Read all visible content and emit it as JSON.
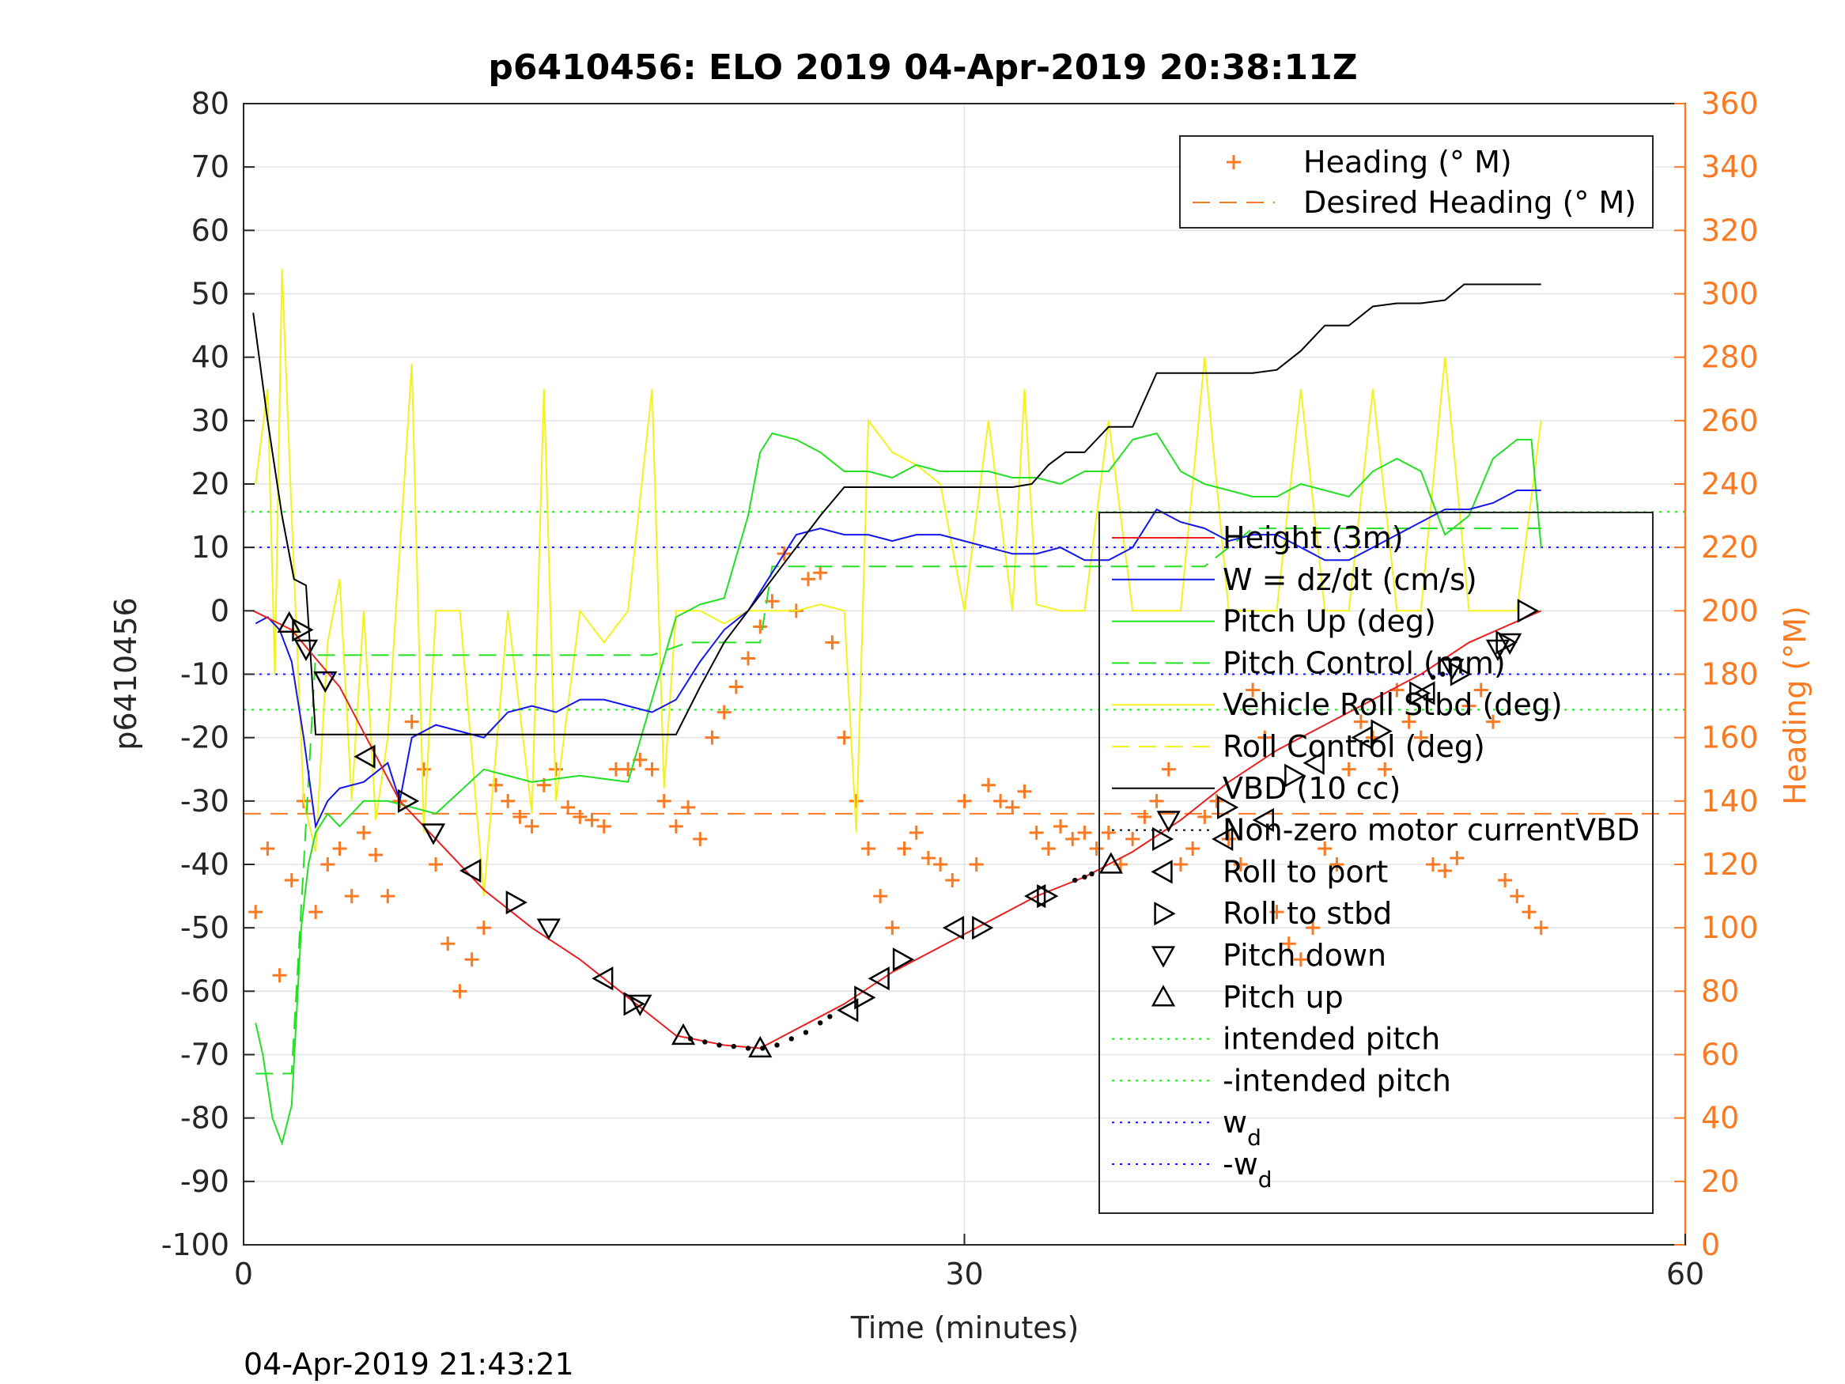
{
  "chart_data": {
    "type": "line",
    "title": "p6410456: ELO 2019 04-Apr-2019 20:38:11Z",
    "xlabel": "Time (minutes)",
    "ylabel": "p6410456",
    "y2label": "Heading (°M)",
    "footer": "04-Apr-2019 21:43:21",
    "xlim": [
      0,
      60
    ],
    "ylim": [
      -100,
      80
    ],
    "y2lim": [
      0,
      360
    ],
    "xticks": [
      0,
      30,
      60
    ],
    "yticks": [
      80,
      70,
      60,
      50,
      40,
      30,
      20,
      10,
      0,
      -10,
      -20,
      -30,
      -40,
      -50,
      -60,
      -70,
      -80,
      -90,
      -100
    ],
    "y2ticks": [
      360,
      340,
      320,
      300,
      280,
      260,
      240,
      220,
      200,
      180,
      160,
      140,
      120,
      100,
      80,
      60,
      40,
      20,
      0
    ],
    "grid": true,
    "colors": {
      "heading": "#f97a22",
      "height": "#e8201f",
      "w": "#1515ee",
      "pitch": "#23e023",
      "roll": "#f2f21d",
      "vbd": "#000000",
      "intended_pitch": "#23e023",
      "wd": "#1515ee",
      "right_axis": "#f97a22"
    },
    "legend_top": [
      {
        "label": "Heading (° M)",
        "style": "plus",
        "color": "#f97a22"
      },
      {
        "label": "Desired Heading (° M)",
        "style": "dash",
        "color": "#f97a22"
      }
    ],
    "legend_main": [
      {
        "label": "Height (3m)",
        "style": "solid",
        "color": "#e8201f"
      },
      {
        "label": "W = dz/dt (cm/s)",
        "style": "solid",
        "color": "#1515ee"
      },
      {
        "label": "Pitch Up (deg)",
        "style": "solid",
        "color": "#23e023"
      },
      {
        "label": "Pitch Control (mm)",
        "style": "dash",
        "color": "#23e023"
      },
      {
        "label": "Vehicle Roll Stbd (deg)",
        "style": "solid",
        "color": "#f2f21d"
      },
      {
        "label": "Roll Control (deg)",
        "style": "dash",
        "color": "#f2f21d"
      },
      {
        "label": "VBD (10 cc)",
        "style": "solid",
        "color": "#000000"
      },
      {
        "label": "Non-zero motor currentVBD",
        "style": "dot",
        "color": "#000000"
      },
      {
        "label": "Roll to port",
        "style": "tri-left",
        "color": "#000000"
      },
      {
        "label": "Roll to stbd",
        "style": "tri-right",
        "color": "#000000"
      },
      {
        "label": "Pitch down",
        "style": "tri-down",
        "color": "#000000"
      },
      {
        "label": "Pitch up",
        "style": "tri-up",
        "color": "#000000"
      },
      {
        "label": "intended pitch",
        "style": "dot",
        "color": "#23e023"
      },
      {
        "label": "-intended pitch",
        "style": "dot",
        "color": "#23e023"
      },
      {
        "label": "w",
        "sub": "d",
        "style": "dot",
        "color": "#1515ee"
      },
      {
        "label": "-w",
        "sub": "d",
        "style": "dot",
        "color": "#1515ee"
      }
    ],
    "series": [
      {
        "key": "height",
        "name": "Height (3m)",
        "axis": "left",
        "x": [
          0.4,
          2,
          4,
          6.5,
          8,
          10,
          12,
          14,
          16,
          18,
          20,
          21.5,
          23,
          25,
          27,
          29,
          31,
          33,
          35,
          37,
          39,
          41,
          43,
          45,
          47,
          49,
          51,
          54
        ],
        "y": [
          0,
          -3,
          -12,
          -30,
          -36,
          -44,
          -50,
          -55,
          -61,
          -67,
          -68.5,
          -69,
          -66,
          -62,
          -57,
          -53,
          -49,
          -45,
          -42,
          -38,
          -33,
          -27,
          -22,
          -18,
          -14,
          -10,
          -5,
          0
        ]
      },
      {
        "key": "vbd",
        "name": "VBD (10 cc)",
        "axis": "left",
        "x": [
          0.4,
          1,
          1.6,
          2.1,
          2.6,
          3,
          7,
          12,
          18,
          19,
          20,
          21,
          22,
          23,
          24,
          25,
          29,
          32,
          32.8,
          33.5,
          34.2,
          35,
          36,
          37,
          38,
          42,
          43,
          44,
          45,
          46,
          47,
          48,
          49,
          50,
          50.8,
          51.5,
          52.5,
          54
        ],
        "y": [
          47,
          30,
          15,
          5,
          4,
          -19.5,
          -19.5,
          -19.5,
          -19.5,
          -12,
          -5,
          0,
          5,
          10,
          15,
          19.5,
          19.5,
          19.5,
          20,
          23,
          25,
          25,
          29,
          29,
          37.5,
          37.5,
          38,
          41,
          45,
          45,
          48,
          48.5,
          48.5,
          49,
          51.5,
          51.5,
          51.5,
          51.5
        ]
      },
      {
        "key": "w",
        "name": "W = dz/dt (cm/s)",
        "axis": "left",
        "x": [
          0.5,
          1,
          1.5,
          2,
          2.5,
          3,
          3.5,
          4,
          5,
          6,
          6.5,
          7,
          8,
          9,
          10,
          11,
          12,
          13,
          14,
          15,
          16,
          17,
          18,
          19,
          20,
          21,
          22,
          23,
          24,
          25,
          26,
          27,
          28,
          29,
          30,
          31,
          32,
          33,
          34,
          35,
          36,
          37,
          38,
          39,
          40,
          41,
          42,
          43,
          44,
          45,
          46,
          47,
          48,
          49,
          50,
          51,
          52,
          53,
          54
        ],
        "y": [
          -2,
          -1,
          -3,
          -8,
          -20,
          -34,
          -30,
          -28,
          -27,
          -24,
          -30,
          -20,
          -18,
          -19,
          -20,
          -16,
          -15,
          -16,
          -14,
          -14,
          -15,
          -16,
          -14,
          -8,
          -3,
          0,
          6,
          12,
          13,
          12,
          12,
          11,
          12,
          12,
          11,
          10,
          9,
          9,
          10,
          8,
          8,
          10,
          16,
          14,
          13,
          11,
          12,
          12,
          10,
          8,
          8,
          10,
          12,
          14,
          16,
          16,
          17,
          19,
          19
        ]
      },
      {
        "key": "pitch",
        "name": "Pitch Up (deg)",
        "axis": "left",
        "x": [
          0.5,
          0.8,
          1.2,
          1.6,
          2,
          2.4,
          2.7,
          3,
          3.5,
          4,
          5,
          6,
          7,
          8,
          10,
          12,
          14,
          16,
          18,
          19,
          20,
          21,
          21.5,
          22,
          23,
          24,
          25,
          26,
          27,
          28,
          29,
          30,
          31,
          32,
          33,
          34,
          35,
          36,
          37,
          38,
          39,
          40,
          41,
          42,
          43,
          44,
          45,
          46,
          47,
          48,
          49,
          50,
          51,
          52,
          53,
          53.6,
          54
        ],
        "y": [
          -65,
          -70,
          -80,
          -84,
          -78,
          -50,
          -40,
          -35,
          -32,
          -34,
          -30,
          -30,
          -31,
          -32,
          -25,
          -27,
          -26,
          -27,
          -1,
          1,
          2,
          15,
          25,
          28,
          27,
          25,
          22,
          22,
          21,
          23,
          22,
          22,
          22,
          21,
          21,
          20,
          22,
          22,
          27,
          28,
          22,
          20,
          19,
          18,
          18,
          20,
          19,
          18,
          22,
          24,
          22,
          12,
          15,
          24,
          27,
          27,
          10
        ]
      },
      {
        "key": "pitch_control",
        "name": "Pitch Control (mm)",
        "axis": "left",
        "style": "dash",
        "x": [
          0.5,
          2,
          2.5,
          3,
          6,
          8,
          12,
          17,
          18.5,
          20,
          21.5,
          22,
          24,
          26,
          30,
          34,
          38,
          40,
          42,
          46,
          50,
          52,
          54
        ],
        "y": [
          -73,
          -73,
          -40,
          -7,
          -7,
          -7,
          -7,
          -7,
          -5,
          -5,
          -5,
          7,
          7,
          7,
          7,
          7,
          7,
          7,
          13,
          13,
          13,
          13,
          13
        ]
      },
      {
        "key": "roll",
        "name": "Vehicle Roll Stbd (deg)",
        "axis": "left",
        "x": [
          0.5,
          1,
          1.3,
          1.6,
          2,
          2.5,
          3,
          3.5,
          4,
          4.5,
          5,
          5.5,
          6,
          7,
          7.5,
          8,
          9,
          10,
          11,
          12,
          12.5,
          13,
          14,
          15,
          16,
          17,
          17.5,
          18,
          19,
          20,
          21,
          22,
          23,
          24,
          25,
          25.5,
          26,
          27,
          28,
          29,
          30,
          31,
          32,
          32.5,
          33,
          34,
          35,
          36,
          37,
          38,
          39,
          40,
          41,
          42,
          43,
          44,
          45,
          46,
          47,
          48,
          49,
          50,
          51,
          52,
          53,
          54
        ],
        "y": [
          20,
          35,
          -10,
          54,
          15,
          -30,
          -38,
          -5,
          5,
          -30,
          0,
          -33,
          -20,
          39,
          -35,
          0,
          0,
          -45,
          0,
          -32,
          35,
          -30,
          0,
          -5,
          0,
          35,
          -28,
          0,
          0,
          -2,
          0,
          0,
          0,
          1,
          0,
          -35,
          30,
          25,
          23,
          20,
          0,
          30,
          0,
          35,
          1,
          0,
          0,
          30,
          0,
          0,
          0,
          40,
          0,
          0,
          0,
          35,
          0,
          0,
          35,
          0,
          0,
          40,
          0,
          0,
          0,
          30
        ]
      },
      {
        "key": "heading",
        "name": "Heading (° M)",
        "axis": "right",
        "style": "plus",
        "x": [
          0.5,
          1,
          1.5,
          2,
          2.5,
          3,
          3.5,
          4,
          4.5,
          5,
          5.5,
          6,
          6.5,
          7,
          7.5,
          8,
          8.5,
          9,
          9.5,
          10,
          10.5,
          11,
          11.5,
          12,
          12.5,
          13,
          13.5,
          14,
          14.5,
          15,
          15.5,
          16,
          16.5,
          17,
          17.5,
          18,
          18.5,
          19,
          19.5,
          20,
          20.5,
          21,
          21.5,
          22,
          22.5,
          23,
          23.5,
          24,
          24.5,
          25,
          25.5,
          26,
          26.5,
          27,
          27.5,
          28,
          28.5,
          29,
          29.5,
          30,
          30.5,
          31,
          31.5,
          32,
          32.5,
          33,
          33.5,
          34,
          34.5,
          35,
          35.5,
          36,
          36.5,
          37,
          37.5,
          38,
          38.5,
          39,
          39.5,
          40,
          40.5,
          41,
          41.5,
          42,
          42.5,
          43,
          43.5,
          44,
          44.5,
          45,
          45.5,
          46,
          46.5,
          47,
          47.5,
          48,
          48.5,
          49,
          49.5,
          50,
          50.5,
          51,
          51.5,
          52,
          52.5,
          53,
          53.5,
          54
        ],
        "y": [
          105,
          125,
          85,
          115,
          140,
          105,
          120,
          125,
          110,
          130,
          123,
          110,
          140,
          165,
          150,
          120,
          95,
          80,
          90,
          100,
          145,
          140,
          135,
          132,
          145,
          150,
          138,
          135,
          134,
          132,
          150,
          150,
          153,
          150,
          140,
          132,
          138,
          128,
          160,
          168,
          176,
          185,
          195,
          203,
          218,
          200,
          210,
          212,
          190,
          160,
          140,
          125,
          110,
          100,
          125,
          130,
          122,
          120,
          115,
          140,
          120,
          145,
          140,
          138,
          143,
          130,
          125,
          132,
          128,
          130,
          125,
          130,
          120,
          128,
          135,
          140,
          150,
          120,
          125,
          135,
          140,
          128,
          120,
          175,
          160,
          105,
          95,
          90,
          100,
          125,
          120,
          150,
          165,
          160,
          150,
          175,
          165,
          160,
          120,
          118,
          122,
          170,
          175,
          165,
          115,
          110,
          105,
          100
        ]
      }
    ],
    "hlines": [
      {
        "key": "intended_pitch",
        "axis": "left",
        "y": 15.6,
        "style": "dot",
        "color": "#23e023"
      },
      {
        "key": "neg_intended_pitch",
        "axis": "left",
        "y": -15.6,
        "style": "dot",
        "color": "#23e023"
      },
      {
        "key": "wd",
        "axis": "left",
        "y": 10,
        "style": "dot",
        "color": "#1515ee"
      },
      {
        "key": "neg_wd",
        "axis": "left",
        "y": -10,
        "style": "dot",
        "color": "#1515ee"
      },
      {
        "key": "desired_heading",
        "axis": "right",
        "y": 136,
        "style": "dash",
        "color": "#f97a22"
      }
    ],
    "markers": {
      "roll_to_port": {
        "x": [
          5.1,
          9.5,
          15,
          25.2,
          26.5,
          29.6,
          33,
          40.8,
          42.5,
          44.6,
          46.6,
          49.2
        ],
        "y": [
          -23,
          -41,
          -58,
          -63,
          -58,
          -50,
          -45,
          -36,
          -33,
          -24,
          -20,
          -13
        ]
      },
      "roll_to_stbd": {
        "x": [
          2.4,
          6.8,
          11.3,
          16.2,
          25.8,
          27.4,
          30.7,
          33.4,
          38.2,
          40.9,
          43.7,
          47.3,
          48.9,
          50.6,
          52.5,
          53.4
        ],
        "y": [
          -3,
          -30,
          -46,
          -62,
          -61,
          -55,
          -50,
          -45,
          -36,
          -31,
          -26,
          -19,
          -13,
          -10,
          -5,
          0
        ]
      },
      "pitch_down": {
        "x": [
          2.6,
          3.4,
          7.9,
          12.7,
          16.5,
          38.5,
          50.3,
          52.2,
          52.7
        ],
        "y": [
          -6,
          -11,
          -35,
          -50,
          -62,
          -33,
          -9,
          -6,
          -5
        ]
      },
      "pitch_up": {
        "x": [
          1.9,
          18.3,
          21.5,
          36.1
        ],
        "y": [
          -2,
          -67,
          -69,
          -40
        ]
      },
      "vbd_motor": {
        "x": [
          18.6,
          19.2,
          19.8,
          20.4,
          21,
          21.6,
          22.2,
          22.8,
          23.4,
          24,
          24.4,
          34.6,
          35.0,
          35.3,
          49.5,
          49.9
        ],
        "y": [
          -67.5,
          -68,
          -68.5,
          -68.7,
          -69,
          -69,
          -68.5,
          -67.5,
          -66.5,
          -65,
          -64,
          -42.5,
          -42,
          -41.5,
          -10.5,
          -10
        ]
      }
    }
  }
}
